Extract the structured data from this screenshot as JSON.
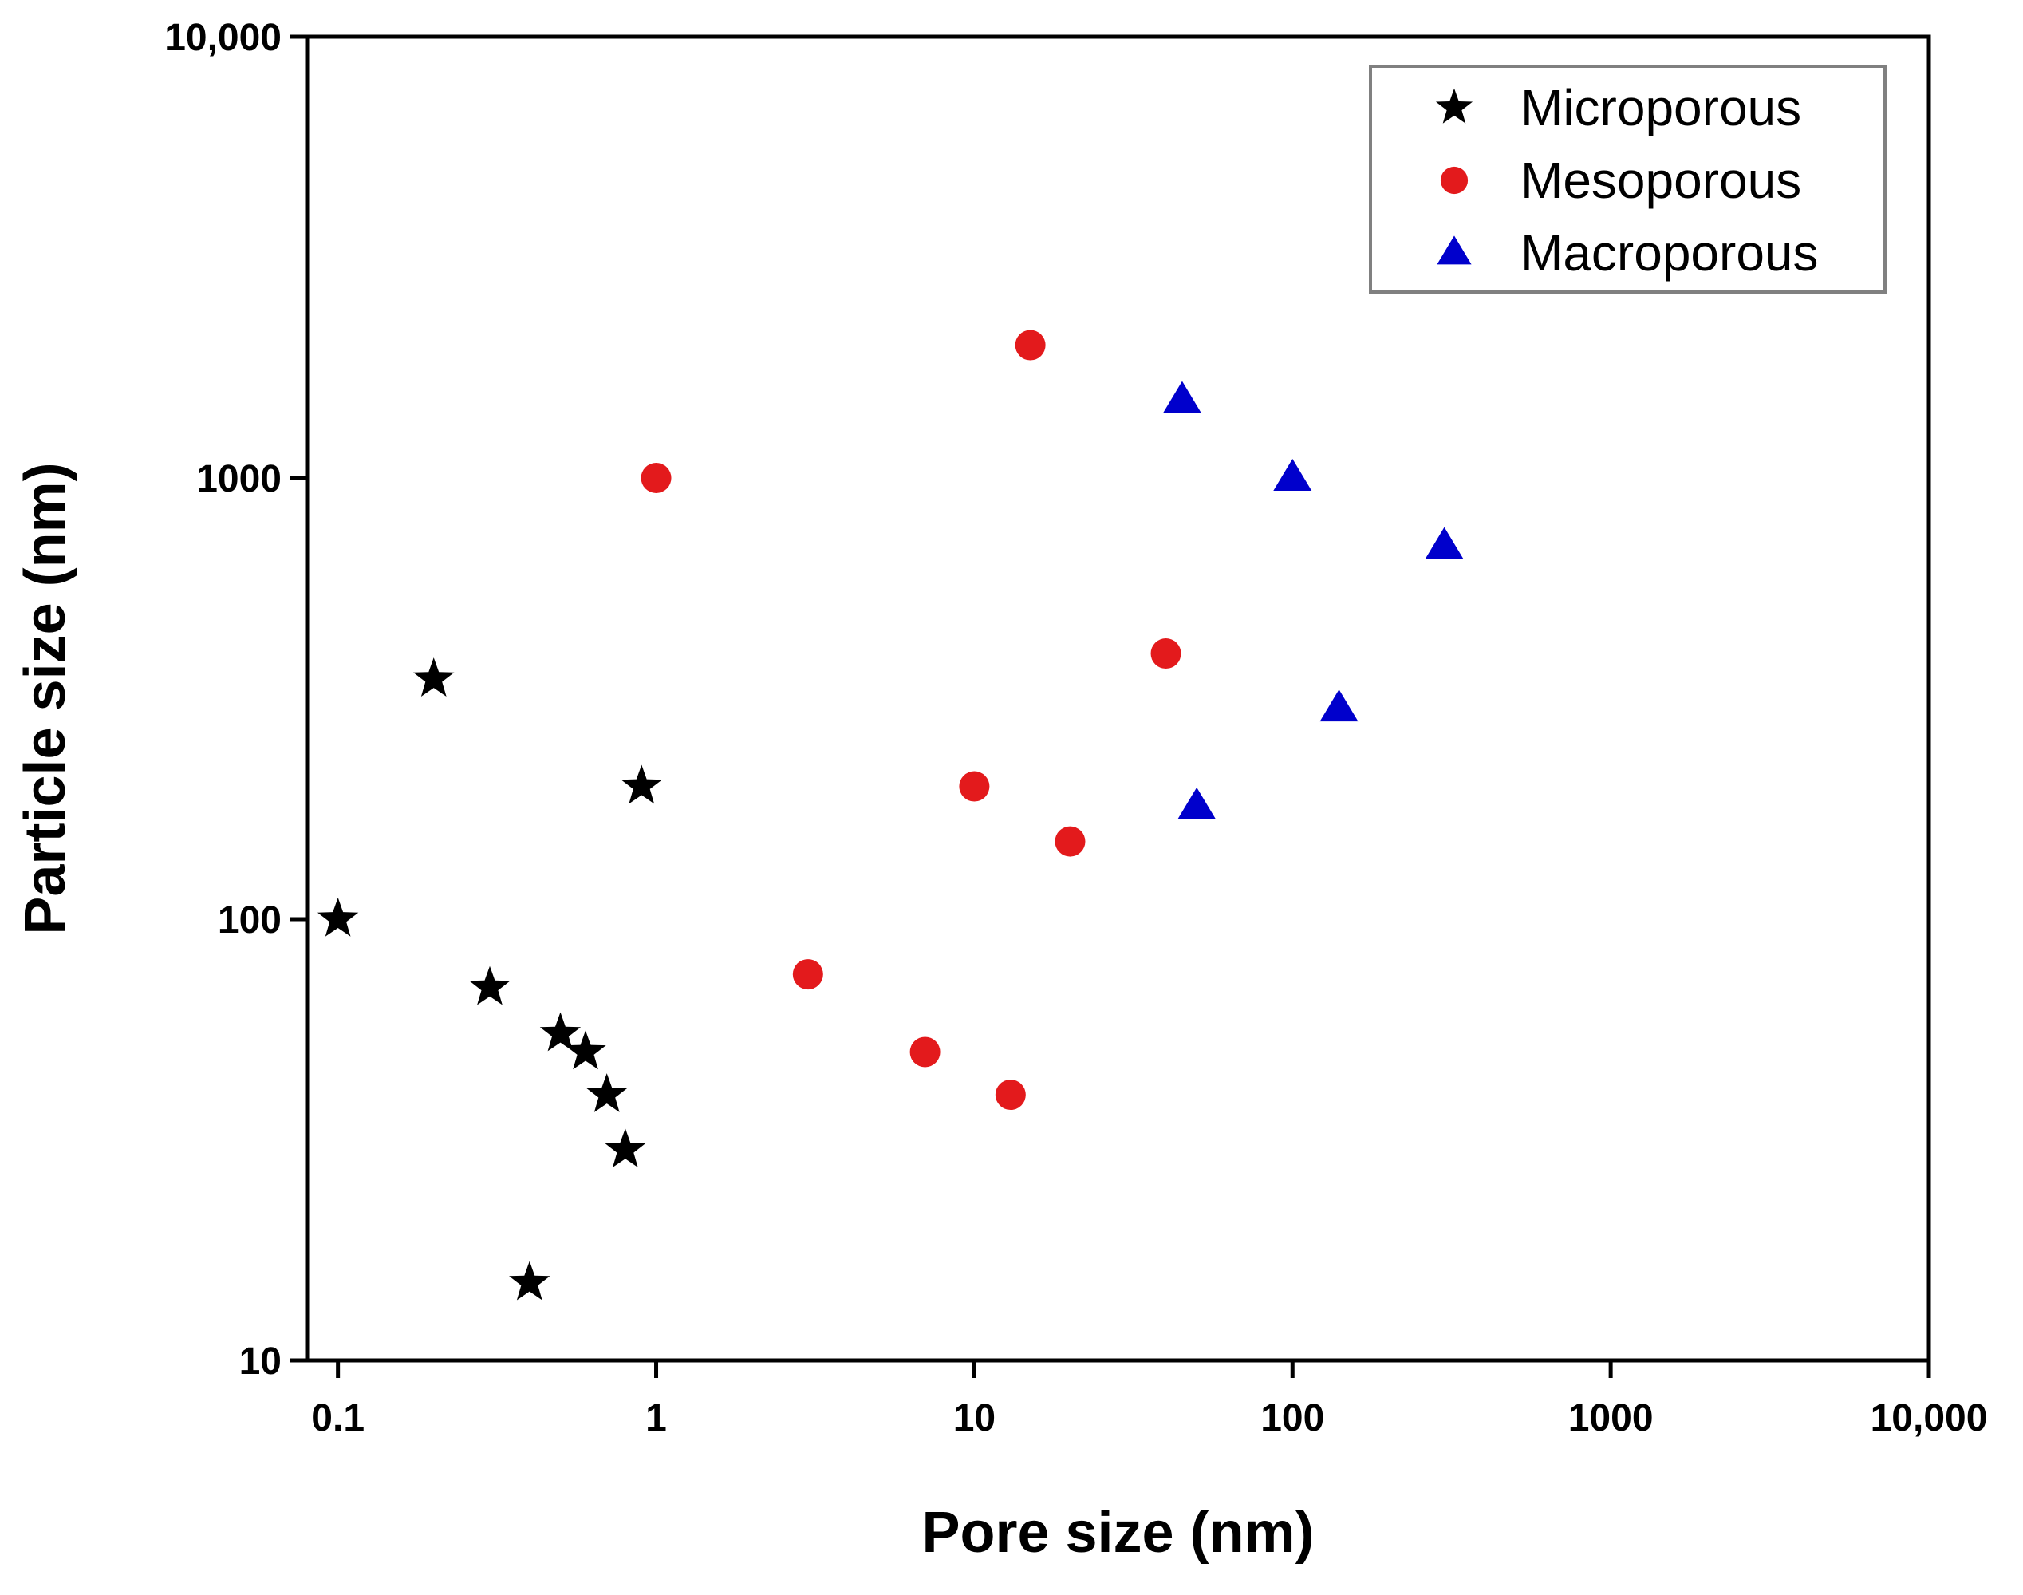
{
  "chart_data": {
    "type": "scatter",
    "title": "",
    "xlabel": "Pore size (nm)",
    "ylabel": "Particle size (nm)",
    "xscale": "log",
    "yscale": "log",
    "xlim": [
      0.08,
      10000
    ],
    "ylim": [
      10,
      10000
    ],
    "xticks": [
      {
        "value": 0.1,
        "label": "0.1"
      },
      {
        "value": 1,
        "label": "1"
      },
      {
        "value": 10,
        "label": "10"
      },
      {
        "value": 100,
        "label": "100"
      },
      {
        "value": 1000,
        "label": "1000"
      },
      {
        "value": 10000,
        "label": "10,000"
      }
    ],
    "yticks": [
      {
        "value": 10,
        "label": "10"
      },
      {
        "value": 100,
        "label": "100"
      },
      {
        "value": 1000,
        "label": "1000"
      },
      {
        "value": 10000,
        "label": "10,000"
      }
    ],
    "legend_position": "top-right",
    "series": [
      {
        "name": "Microporous",
        "marker": "star",
        "color": "#000000",
        "points": [
          {
            "x": 0.1,
            "y": 100
          },
          {
            "x": 0.2,
            "y": 350
          },
          {
            "x": 0.3,
            "y": 70
          },
          {
            "x": 0.4,
            "y": 15
          },
          {
            "x": 0.5,
            "y": 55
          },
          {
            "x": 0.6,
            "y": 50
          },
          {
            "x": 0.7,
            "y": 40
          },
          {
            "x": 0.8,
            "y": 30
          },
          {
            "x": 0.9,
            "y": 200
          }
        ]
      },
      {
        "name": "Mesoporous",
        "marker": "circle",
        "color": "#e31a1c",
        "points": [
          {
            "x": 1,
            "y": 1000
          },
          {
            "x": 3,
            "y": 75
          },
          {
            "x": 7,
            "y": 50
          },
          {
            "x": 10,
            "y": 200
          },
          {
            "x": 13,
            "y": 40
          },
          {
            "x": 15,
            "y": 2000
          },
          {
            "x": 20,
            "y": 150
          },
          {
            "x": 40,
            "y": 400
          }
        ]
      },
      {
        "name": "Macroporous",
        "marker": "triangle",
        "color": "#0000cc",
        "points": [
          {
            "x": 45,
            "y": 1500
          },
          {
            "x": 50,
            "y": 180
          },
          {
            "x": 100,
            "y": 1000
          },
          {
            "x": 140,
            "y": 300
          },
          {
            "x": 300,
            "y": 700
          }
        ]
      }
    ]
  }
}
